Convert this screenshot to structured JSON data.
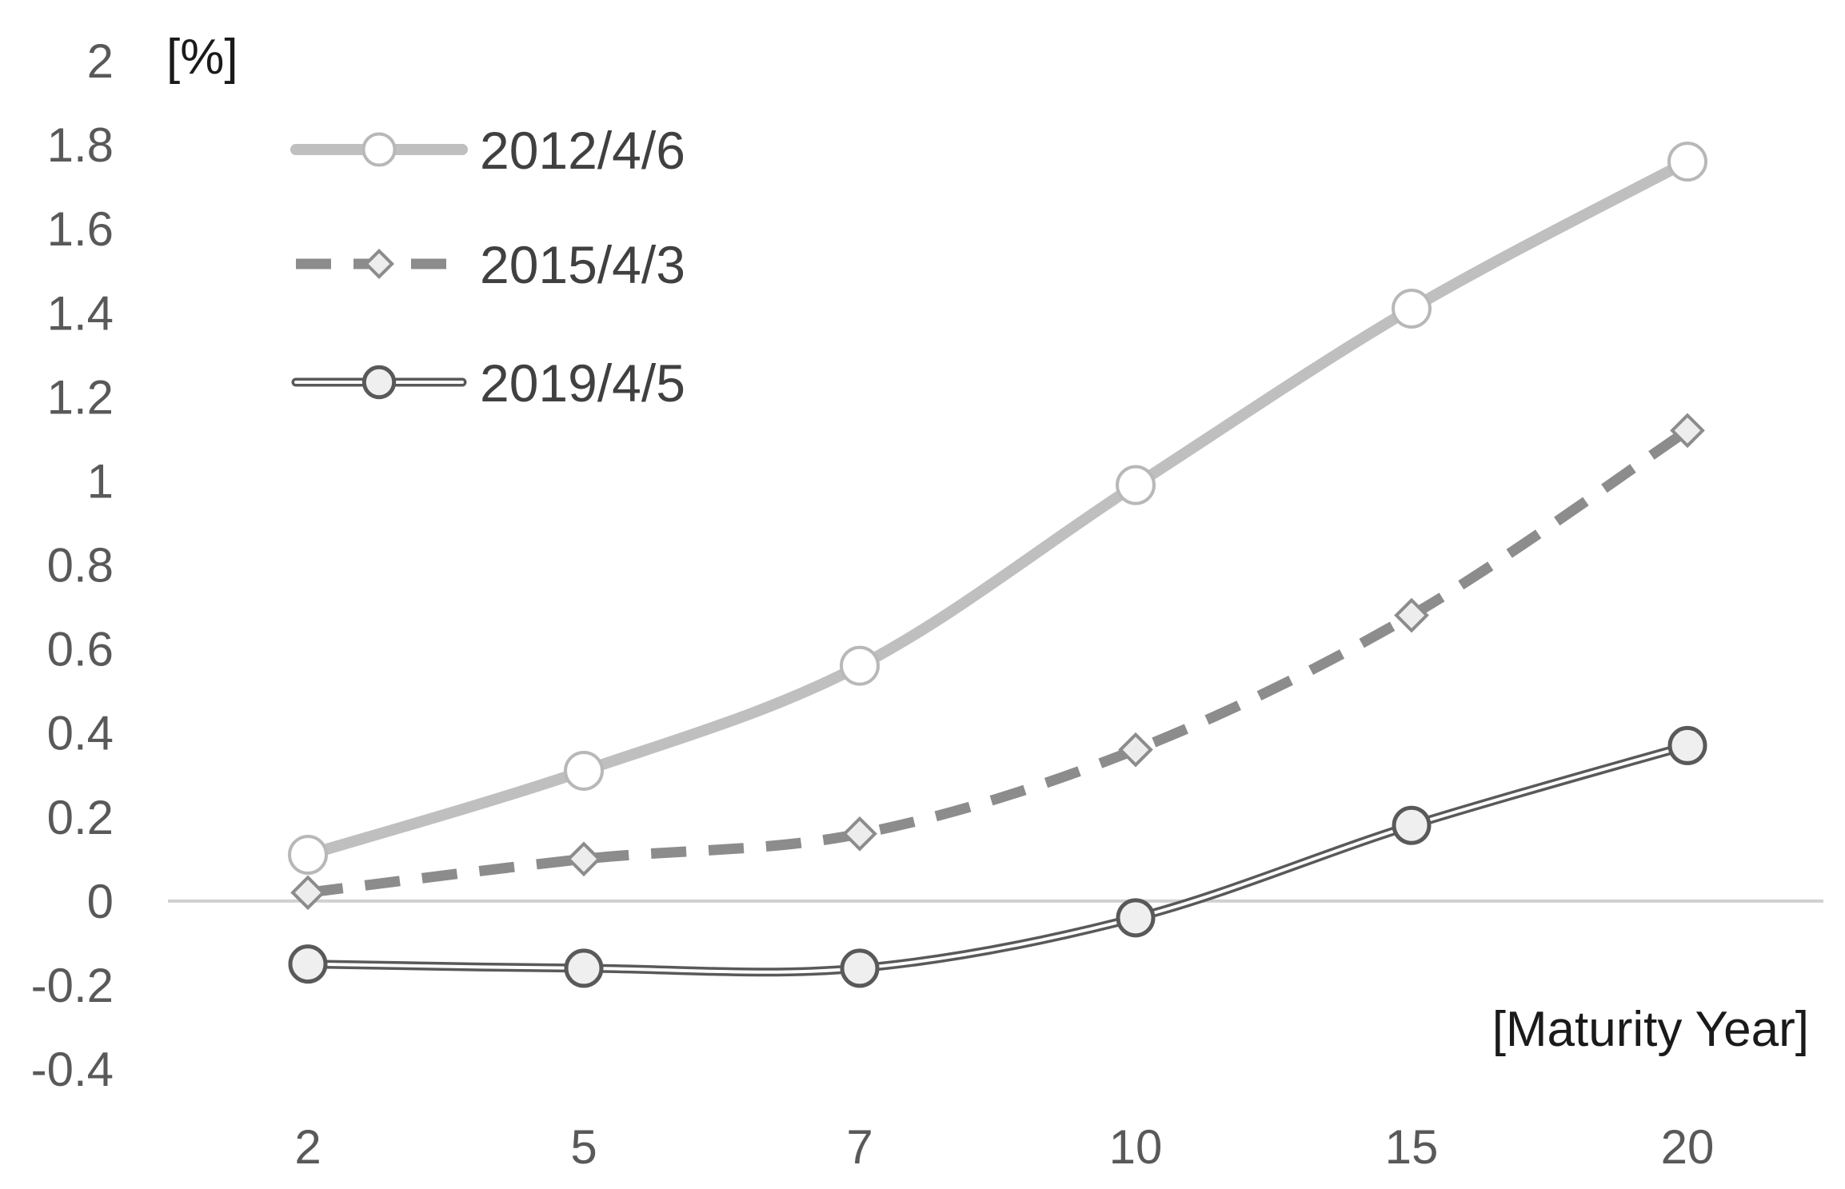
{
  "chart_data": {
    "type": "line",
    "ylabel": "[%]",
    "xlabel": "[Maturity Year]",
    "categories": [
      "2",
      "5",
      "7",
      "10",
      "15",
      "20"
    ],
    "ylim": [
      -0.4,
      2
    ],
    "yticks": [
      "2",
      "1.8",
      "1.6",
      "1.4",
      "1.2",
      "1",
      "0.8",
      "0.6",
      "0.4",
      "0.2",
      "0",
      "-0.2",
      "-0.4"
    ],
    "grid": false,
    "legend_position": "top-left",
    "series": [
      {
        "name": "2012/4/6",
        "values": [
          0.11,
          0.31,
          0.56,
          0.99,
          1.41,
          1.76
        ],
        "color": "#bfbfbf",
        "style": "solid",
        "marker": "circle-open"
      },
      {
        "name": "2015/4/3",
        "values": [
          0.02,
          0.1,
          0.16,
          0.36,
          0.68,
          1.12
        ],
        "color": "#8c8c8c",
        "style": "dashed",
        "marker": "diamond"
      },
      {
        "name": "2019/4/5",
        "values": [
          -0.15,
          -0.16,
          -0.16,
          -0.04,
          0.18,
          0.37
        ],
        "color": "#595959",
        "style": "double",
        "marker": "circle-filled"
      }
    ]
  }
}
